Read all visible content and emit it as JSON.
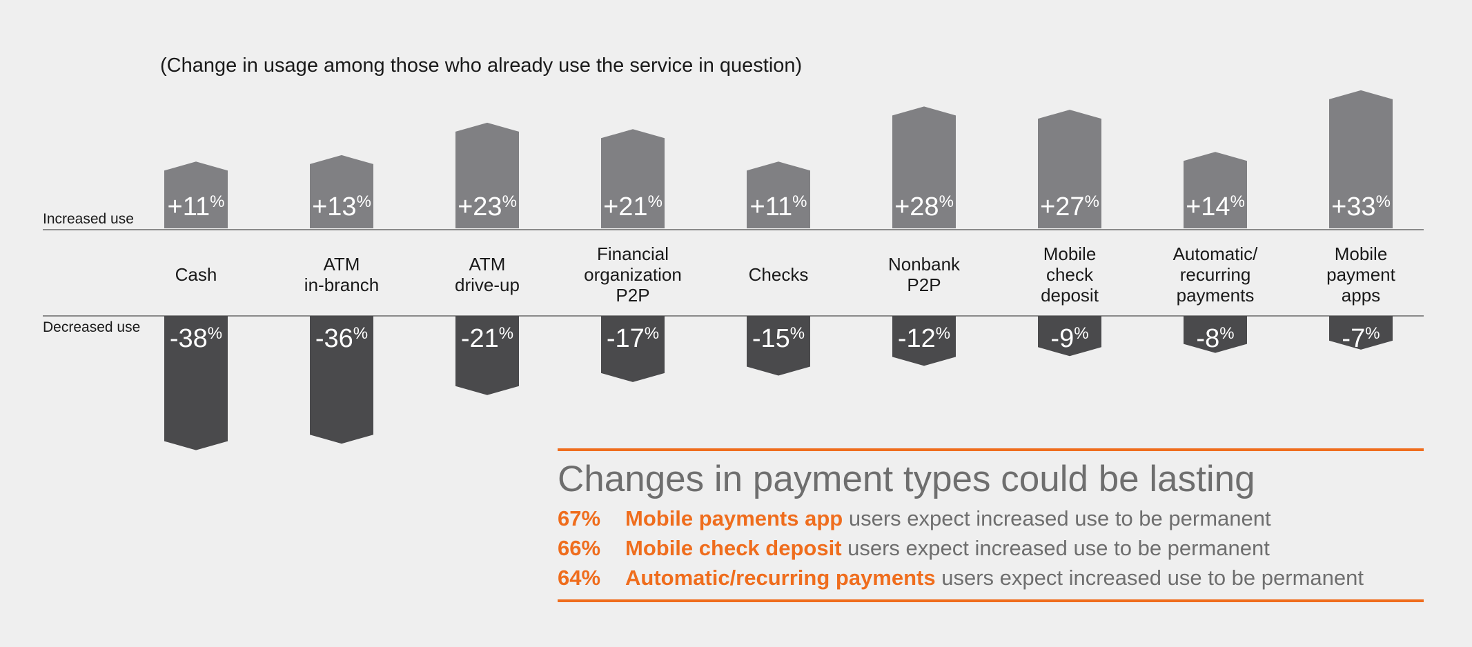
{
  "subtitle": "(Change in usage among those who already use the service in question)",
  "increased_label": "Increased use",
  "decreased_label": "Decreased use",
  "colors": {
    "background": "#efefef",
    "increase_bar": "#808083",
    "decrease_bar": "#4a4a4c",
    "accent": "#ef6d1d",
    "body_text": "#6e6e6e"
  },
  "chart_data": {
    "type": "bar",
    "subtitle": "(Change in usage among those who already use the service in question)",
    "categories": [
      "Cash",
      "ATM\nin-branch",
      "ATM\ndrive-up",
      "Financial\norganization\nP2P",
      "Checks",
      "Nonbank\nP2P",
      "Mobile\ncheck\ndeposit",
      "Automatic/\nrecurring\npayments",
      "Mobile\npayment\napps"
    ],
    "series": [
      {
        "name": "Increased use",
        "values": [
          11,
          13,
          23,
          21,
          11,
          28,
          27,
          14,
          33
        ],
        "labels": [
          "+11",
          "+13",
          "+23",
          "+21",
          "+11",
          "+28",
          "+27",
          "+14",
          "+33"
        ]
      },
      {
        "name": "Decreased use",
        "values": [
          -38,
          -36,
          -21,
          -17,
          -15,
          -12,
          -9,
          -8,
          -7
        ],
        "labels": [
          "-38",
          "-36",
          "-21",
          "-17",
          "-15",
          "-12",
          "-9",
          "-8",
          "-7"
        ]
      }
    ],
    "unit": "%"
  },
  "summary": {
    "title": "Changes in payment types could be lasting",
    "items": [
      {
        "pct": "67%",
        "name": "Mobile payments app",
        "rest": " users expect increased use to be permanent"
      },
      {
        "pct": "66%",
        "name": "Mobile check deposit",
        "rest": " users expect increased use to be permanent"
      },
      {
        "pct": "64%",
        "name": "Automatic/recurring payments",
        "rest": " users expect increased use to be permanent"
      }
    ]
  }
}
